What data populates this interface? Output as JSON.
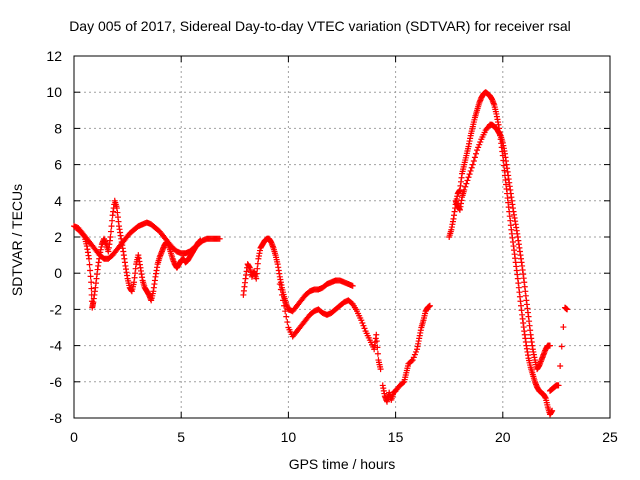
{
  "chart_data": {
    "type": "scatter",
    "title": "Day 005 of 2017, Sidereal Day-to-day VTEC variation (SDTVAR) for receiver rsal",
    "xlabel": "GPS time / hours",
    "ylabel": "SDTVAR / TECUs",
    "xlim": [
      0,
      25
    ],
    "ylim": [
      -8,
      12
    ],
    "xticks": [
      0,
      5,
      10,
      15,
      20,
      25
    ],
    "yticks": [
      -8,
      -6,
      -4,
      -2,
      0,
      2,
      4,
      6,
      8,
      10,
      12
    ],
    "grid": true,
    "marker": "plus",
    "color": "#ff0000",
    "series": [
      {
        "points": [
          [
            0.0,
            2.6
          ],
          [
            0.2,
            2.5
          ],
          [
            0.4,
            2.2
          ],
          [
            0.6,
            1.9
          ],
          [
            0.8,
            1.6
          ],
          [
            1.0,
            1.3
          ],
          [
            1.2,
            1.0
          ],
          [
            1.4,
            0.8
          ],
          [
            1.6,
            0.8
          ],
          [
            1.8,
            1.0
          ],
          [
            2.0,
            1.3
          ],
          [
            2.2,
            1.6
          ],
          [
            2.4,
            1.9
          ],
          [
            2.6,
            2.2
          ],
          [
            2.8,
            2.4
          ],
          [
            3.0,
            2.6
          ],
          [
            3.2,
            2.7
          ],
          [
            3.4,
            2.8
          ],
          [
            3.6,
            2.7
          ],
          [
            3.8,
            2.5
          ],
          [
            4.0,
            2.3
          ],
          [
            4.2,
            2.0
          ],
          [
            4.4,
            1.7
          ],
          [
            4.6,
            1.4
          ],
          [
            4.8,
            1.2
          ],
          [
            5.0,
            1.1
          ],
          [
            5.2,
            1.1
          ],
          [
            5.4,
            1.2
          ],
          [
            5.6,
            1.4
          ],
          [
            5.8,
            1.6
          ],
          [
            6.0,
            1.8
          ],
          [
            6.2,
            1.9
          ],
          [
            6.4,
            1.9
          ],
          [
            6.6,
            1.9
          ],
          [
            6.8,
            1.9
          ]
        ]
      },
      {
        "points": [
          [
            0.1,
            2.5
          ],
          [
            0.3,
            2.3
          ],
          [
            0.5,
            2.0
          ],
          [
            0.6,
            1.5
          ],
          [
            0.7,
            0.8
          ],
          [
            0.8,
            -0.5
          ],
          [
            0.85,
            -1.9
          ],
          [
            0.9,
            -1.6
          ],
          [
            1.0,
            -0.8
          ],
          [
            1.1,
            0.2
          ],
          [
            1.2,
            1.0
          ],
          [
            1.3,
            1.6
          ],
          [
            1.4,
            1.9
          ],
          [
            1.5,
            1.6
          ],
          [
            1.6,
            1.2
          ],
          [
            1.7,
            2.0
          ],
          [
            1.8,
            3.2
          ],
          [
            1.9,
            4.0
          ],
          [
            2.0,
            3.6
          ],
          [
            2.1,
            2.6
          ],
          [
            2.2,
            1.9
          ],
          [
            2.3,
            1.2
          ],
          [
            2.4,
            0.4
          ],
          [
            2.5,
            -0.3
          ],
          [
            2.6,
            -0.8
          ],
          [
            2.7,
            -1.0
          ],
          [
            2.8,
            -0.5
          ],
          [
            2.9,
            0.5
          ],
          [
            3.0,
            1.0
          ],
          [
            3.1,
            0.3
          ],
          [
            3.2,
            -0.4
          ],
          [
            3.3,
            -0.8
          ],
          [
            3.4,
            -1.0
          ],
          [
            3.5,
            -1.2
          ],
          [
            3.6,
            -1.5
          ],
          [
            3.7,
            -1.0
          ],
          [
            3.8,
            -0.2
          ],
          [
            3.9,
            0.5
          ],
          [
            4.0,
            0.9
          ],
          [
            4.1,
            1.2
          ],
          [
            4.2,
            1.5
          ],
          [
            4.3,
            1.7
          ],
          [
            4.4,
            1.6
          ],
          [
            4.5,
            1.2
          ],
          [
            4.6,
            0.8
          ],
          [
            4.7,
            0.5
          ],
          [
            4.8,
            0.3
          ],
          [
            4.9,
            0.5
          ],
          [
            5.0,
            0.7
          ],
          [
            5.1,
            0.8
          ],
          [
            5.2,
            0.6
          ],
          [
            5.3,
            0.7
          ],
          [
            5.4,
            0.9
          ],
          [
            5.5,
            1.1
          ],
          [
            5.6,
            1.3
          ],
          [
            5.7,
            1.5
          ],
          [
            5.8,
            1.7
          ],
          [
            5.9,
            1.8
          ]
        ]
      },
      {
        "points": [
          [
            7.9,
            -1.2
          ],
          [
            8.0,
            -0.3
          ],
          [
            8.1,
            0.5
          ],
          [
            8.2,
            0.3
          ],
          [
            8.3,
            -0.2
          ],
          [
            8.4,
            0.1
          ],
          [
            8.5,
            -0.3
          ],
          [
            8.6,
            0.8
          ],
          [
            8.7,
            1.4
          ],
          [
            8.8,
            1.6
          ],
          [
            8.9,
            1.8
          ],
          [
            9.0,
            1.9
          ],
          [
            9.1,
            1.9
          ],
          [
            9.2,
            1.7
          ],
          [
            9.3,
            1.4
          ],
          [
            9.4,
            1.0
          ],
          [
            9.5,
            0.5
          ],
          [
            9.6,
            -0.2
          ],
          [
            9.7,
            -0.8
          ],
          [
            9.8,
            -1.3
          ],
          [
            9.9,
            -1.7
          ],
          [
            10.0,
            -2.0
          ],
          [
            10.2,
            -2.1
          ],
          [
            10.4,
            -1.8
          ],
          [
            10.6,
            -1.5
          ],
          [
            10.8,
            -1.2
          ],
          [
            11.0,
            -1.0
          ],
          [
            11.2,
            -0.9
          ],
          [
            11.4,
            -0.9
          ],
          [
            11.6,
            -0.8
          ],
          [
            11.8,
            -0.6
          ],
          [
            12.0,
            -0.5
          ],
          [
            12.2,
            -0.4
          ],
          [
            12.4,
            -0.4
          ],
          [
            12.6,
            -0.5
          ],
          [
            12.8,
            -0.6
          ],
          [
            13.0,
            -0.7
          ]
        ]
      },
      {
        "points": [
          [
            9.6,
            -0.6
          ],
          [
            9.8,
            -1.8
          ],
          [
            10.0,
            -3.0
          ],
          [
            10.2,
            -3.5
          ],
          [
            10.4,
            -3.2
          ],
          [
            10.6,
            -2.9
          ],
          [
            10.8,
            -2.6
          ],
          [
            11.0,
            -2.3
          ],
          [
            11.2,
            -2.1
          ],
          [
            11.4,
            -2.0
          ],
          [
            11.6,
            -2.2
          ],
          [
            11.8,
            -2.3
          ],
          [
            12.0,
            -2.2
          ],
          [
            12.2,
            -2.0
          ],
          [
            12.4,
            -1.8
          ],
          [
            12.6,
            -1.6
          ],
          [
            12.8,
            -1.5
          ],
          [
            13.0,
            -1.7
          ],
          [
            13.2,
            -2.1
          ],
          [
            13.4,
            -2.6
          ],
          [
            13.6,
            -3.2
          ],
          [
            13.8,
            -3.7
          ],
          [
            14.0,
            -4.2
          ],
          [
            14.1,
            -3.4
          ],
          [
            14.2,
            -4.8
          ],
          [
            14.3,
            -5.3
          ]
        ]
      },
      {
        "points": [
          [
            14.4,
            -6.2
          ],
          [
            14.5,
            -6.8
          ],
          [
            14.6,
            -7.1
          ],
          [
            14.7,
            -6.6
          ],
          [
            14.8,
            -7.0
          ],
          [
            14.9,
            -6.6
          ],
          [
            15.0,
            -6.5
          ],
          [
            15.2,
            -6.2
          ],
          [
            15.4,
            -6.0
          ],
          [
            15.5,
            -5.5
          ],
          [
            15.6,
            -5.0
          ],
          [
            15.8,
            -4.8
          ],
          [
            16.0,
            -4.2
          ],
          [
            16.1,
            -3.6
          ],
          [
            16.2,
            -3.0
          ],
          [
            16.3,
            -2.6
          ],
          [
            16.4,
            -2.1
          ],
          [
            16.5,
            -1.9
          ],
          [
            16.6,
            -1.8
          ]
        ]
      },
      {
        "points": [
          [
            17.5,
            2.0
          ],
          [
            17.6,
            2.4
          ],
          [
            17.7,
            3.0
          ],
          [
            17.8,
            3.8
          ],
          [
            17.9,
            4.4
          ],
          [
            18.0,
            4.6
          ],
          [
            18.1,
            5.5
          ],
          [
            18.2,
            6.0
          ],
          [
            18.3,
            6.5
          ],
          [
            18.4,
            7.0
          ],
          [
            18.5,
            7.6
          ],
          [
            18.6,
            8.1
          ],
          [
            18.7,
            8.6
          ],
          [
            18.8,
            9.0
          ],
          [
            18.9,
            9.4
          ],
          [
            19.0,
            9.7
          ],
          [
            19.1,
            9.9
          ],
          [
            19.2,
            10.0
          ],
          [
            19.3,
            9.9
          ],
          [
            19.4,
            9.8
          ],
          [
            19.5,
            9.6
          ],
          [
            19.6,
            9.3
          ],
          [
            19.7,
            8.8
          ],
          [
            19.8,
            8.2
          ],
          [
            19.9,
            7.4
          ],
          [
            20.0,
            6.5
          ],
          [
            20.1,
            5.4
          ],
          [
            20.2,
            4.4
          ],
          [
            20.3,
            3.4
          ],
          [
            20.4,
            2.4
          ],
          [
            20.5,
            1.5
          ],
          [
            20.6,
            0.6
          ],
          [
            20.7,
            -0.3
          ],
          [
            20.8,
            -1.3
          ],
          [
            20.9,
            -2.3
          ],
          [
            21.0,
            -3.2
          ],
          [
            21.1,
            -4.0
          ],
          [
            21.2,
            -4.7
          ],
          [
            21.3,
            -5.2
          ],
          [
            21.4,
            -5.6
          ],
          [
            21.5,
            -6.0
          ],
          [
            21.6,
            -6.3
          ],
          [
            21.7,
            -6.5
          ],
          [
            21.8,
            -6.6
          ],
          [
            21.9,
            -6.7
          ],
          [
            22.0,
            -6.9
          ],
          [
            22.1,
            -7.4
          ],
          [
            22.2,
            -7.8
          ],
          [
            22.3,
            -7.6
          ]
        ]
      },
      {
        "points": [
          [
            17.8,
            4.0
          ],
          [
            17.9,
            3.7
          ],
          [
            18.0,
            3.5
          ],
          [
            18.1,
            4.2
          ],
          [
            18.2,
            4.6
          ],
          [
            18.4,
            5.3
          ],
          [
            18.6,
            6.0
          ],
          [
            18.8,
            6.8
          ],
          [
            19.0,
            7.4
          ],
          [
            19.2,
            7.9
          ],
          [
            19.4,
            8.2
          ],
          [
            19.5,
            8.2
          ],
          [
            19.6,
            8.1
          ],
          [
            19.7,
            8.0
          ],
          [
            19.8,
            7.8
          ],
          [
            19.9,
            7.6
          ],
          [
            20.0,
            7.2
          ],
          [
            20.1,
            6.6
          ],
          [
            20.2,
            5.8
          ],
          [
            20.3,
            5.0
          ],
          [
            20.4,
            4.2
          ],
          [
            20.5,
            3.4
          ],
          [
            20.6,
            2.7
          ],
          [
            20.7,
            2.0
          ],
          [
            20.8,
            1.2
          ],
          [
            20.9,
            0.4
          ],
          [
            21.0,
            -0.5
          ],
          [
            21.1,
            -1.5
          ],
          [
            21.2,
            -2.4
          ],
          [
            21.3,
            -3.4
          ],
          [
            21.4,
            -4.2
          ],
          [
            21.5,
            -4.8
          ],
          [
            21.6,
            -5.3
          ],
          [
            21.7,
            -5.1
          ],
          [
            21.8,
            -4.8
          ],
          [
            21.9,
            -4.5
          ],
          [
            22.0,
            -4.2
          ],
          [
            22.1,
            -4.0
          ],
          [
            22.2,
            -4.0
          ]
        ]
      },
      {
        "points": [
          [
            22.2,
            -6.5
          ],
          [
            22.3,
            -6.4
          ],
          [
            22.4,
            -6.3
          ],
          [
            22.5,
            -6.2
          ],
          [
            22.6,
            -6.2
          ],
          [
            22.9,
            -1.9
          ],
          [
            23.0,
            -2.0
          ]
        ]
      }
    ]
  }
}
